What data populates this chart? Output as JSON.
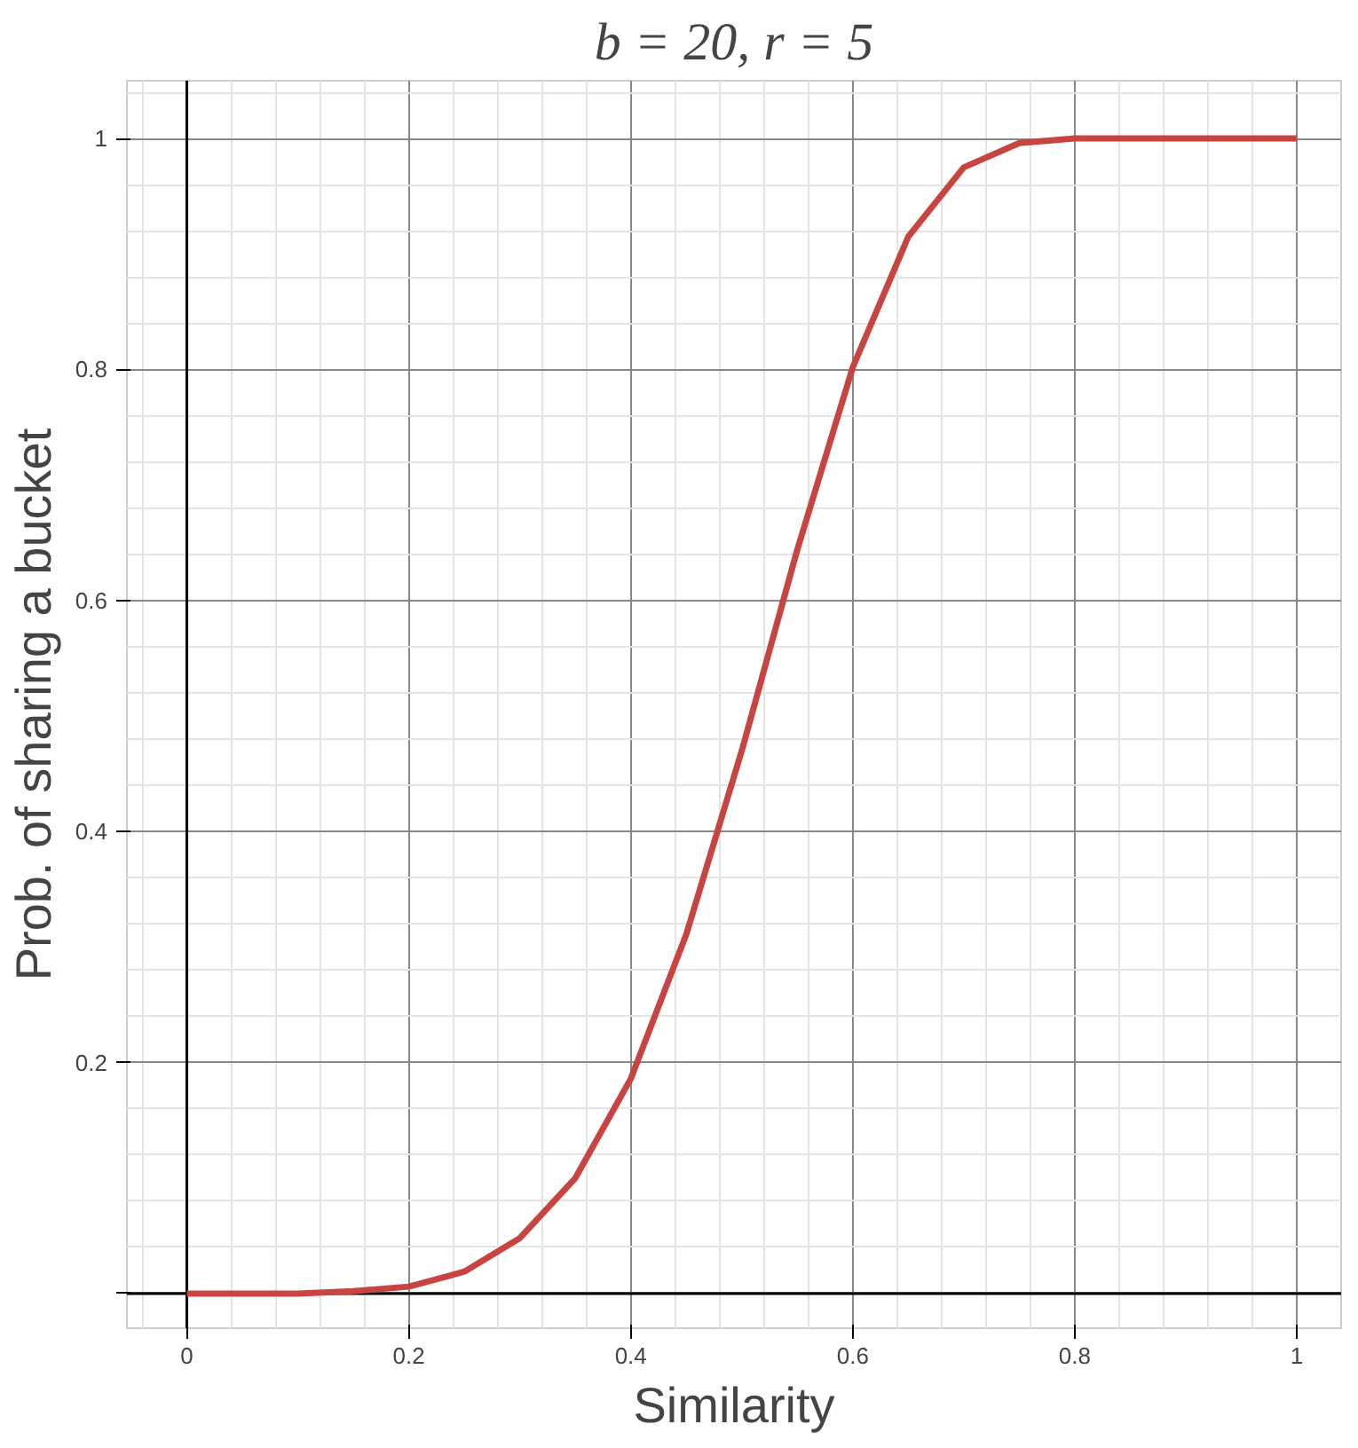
{
  "chart_data": {
    "type": "line",
    "title": "b = 20, r = 5",
    "xlabel": "Similarity",
    "ylabel": "Prob. of sharing a bucket",
    "x": [
      0,
      0.05,
      0.1,
      0.15,
      0.2,
      0.25,
      0.3,
      0.35,
      0.4,
      0.45,
      0.5,
      0.55,
      0.6,
      0.65,
      0.7,
      0.75,
      0.8,
      0.85,
      0.9,
      0.95,
      1
    ],
    "series": [
      {
        "color": "#c74440",
        "values": [
          0,
          0,
          0,
          0.002,
          0.006,
          0.019,
          0.048,
          0.1,
          0.186,
          0.311,
          0.47,
          0.644,
          0.802,
          0.915,
          0.975,
          0.996,
          1,
          1,
          1,
          1,
          1
        ]
      }
    ],
    "xlim": [
      -0.054,
      1.04
    ],
    "ylim": [
      -0.03,
      1.05
    ],
    "xticks": [
      0,
      0.2,
      0.4,
      0.6,
      0.8,
      1
    ],
    "yticks": [
      {
        "value": 0,
        "label": null
      },
      0.2,
      0.4,
      0.6,
      0.8,
      1
    ],
    "grid": true,
    "marker": "none",
    "line_style": "solid"
  }
}
